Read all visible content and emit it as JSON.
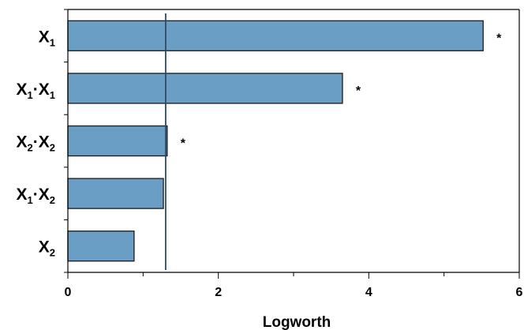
{
  "chart_data": {
    "type": "bar",
    "orientation": "horizontal",
    "categories": [
      {
        "base": "X",
        "sub": "1",
        "base2": "",
        "sub2": ""
      },
      {
        "base": "X",
        "sub": "1",
        "base2": "X",
        "sub2": "1"
      },
      {
        "base": "X",
        "sub": "2",
        "base2": "X",
        "sub2": "2"
      },
      {
        "base": "X",
        "sub": "1",
        "base2": "X",
        "sub2": "2"
      },
      {
        "base": "X",
        "sub": "2",
        "base2": "",
        "sub2": ""
      }
    ],
    "values": [
      5.52,
      3.65,
      1.32,
      1.27,
      0.88
    ],
    "annotations": [
      "*",
      "*",
      "*",
      "",
      ""
    ],
    "xlabel": "Logworth",
    "xlim": [
      0,
      6
    ],
    "xticks": [
      0,
      2,
      4,
      6
    ],
    "reference_line": 1.3,
    "bar_color": "#6A9EC4",
    "bar_stroke": "#1a1a1a",
    "reference_line_color": "#2E4A66",
    "grid": false,
    "legend": "none"
  }
}
